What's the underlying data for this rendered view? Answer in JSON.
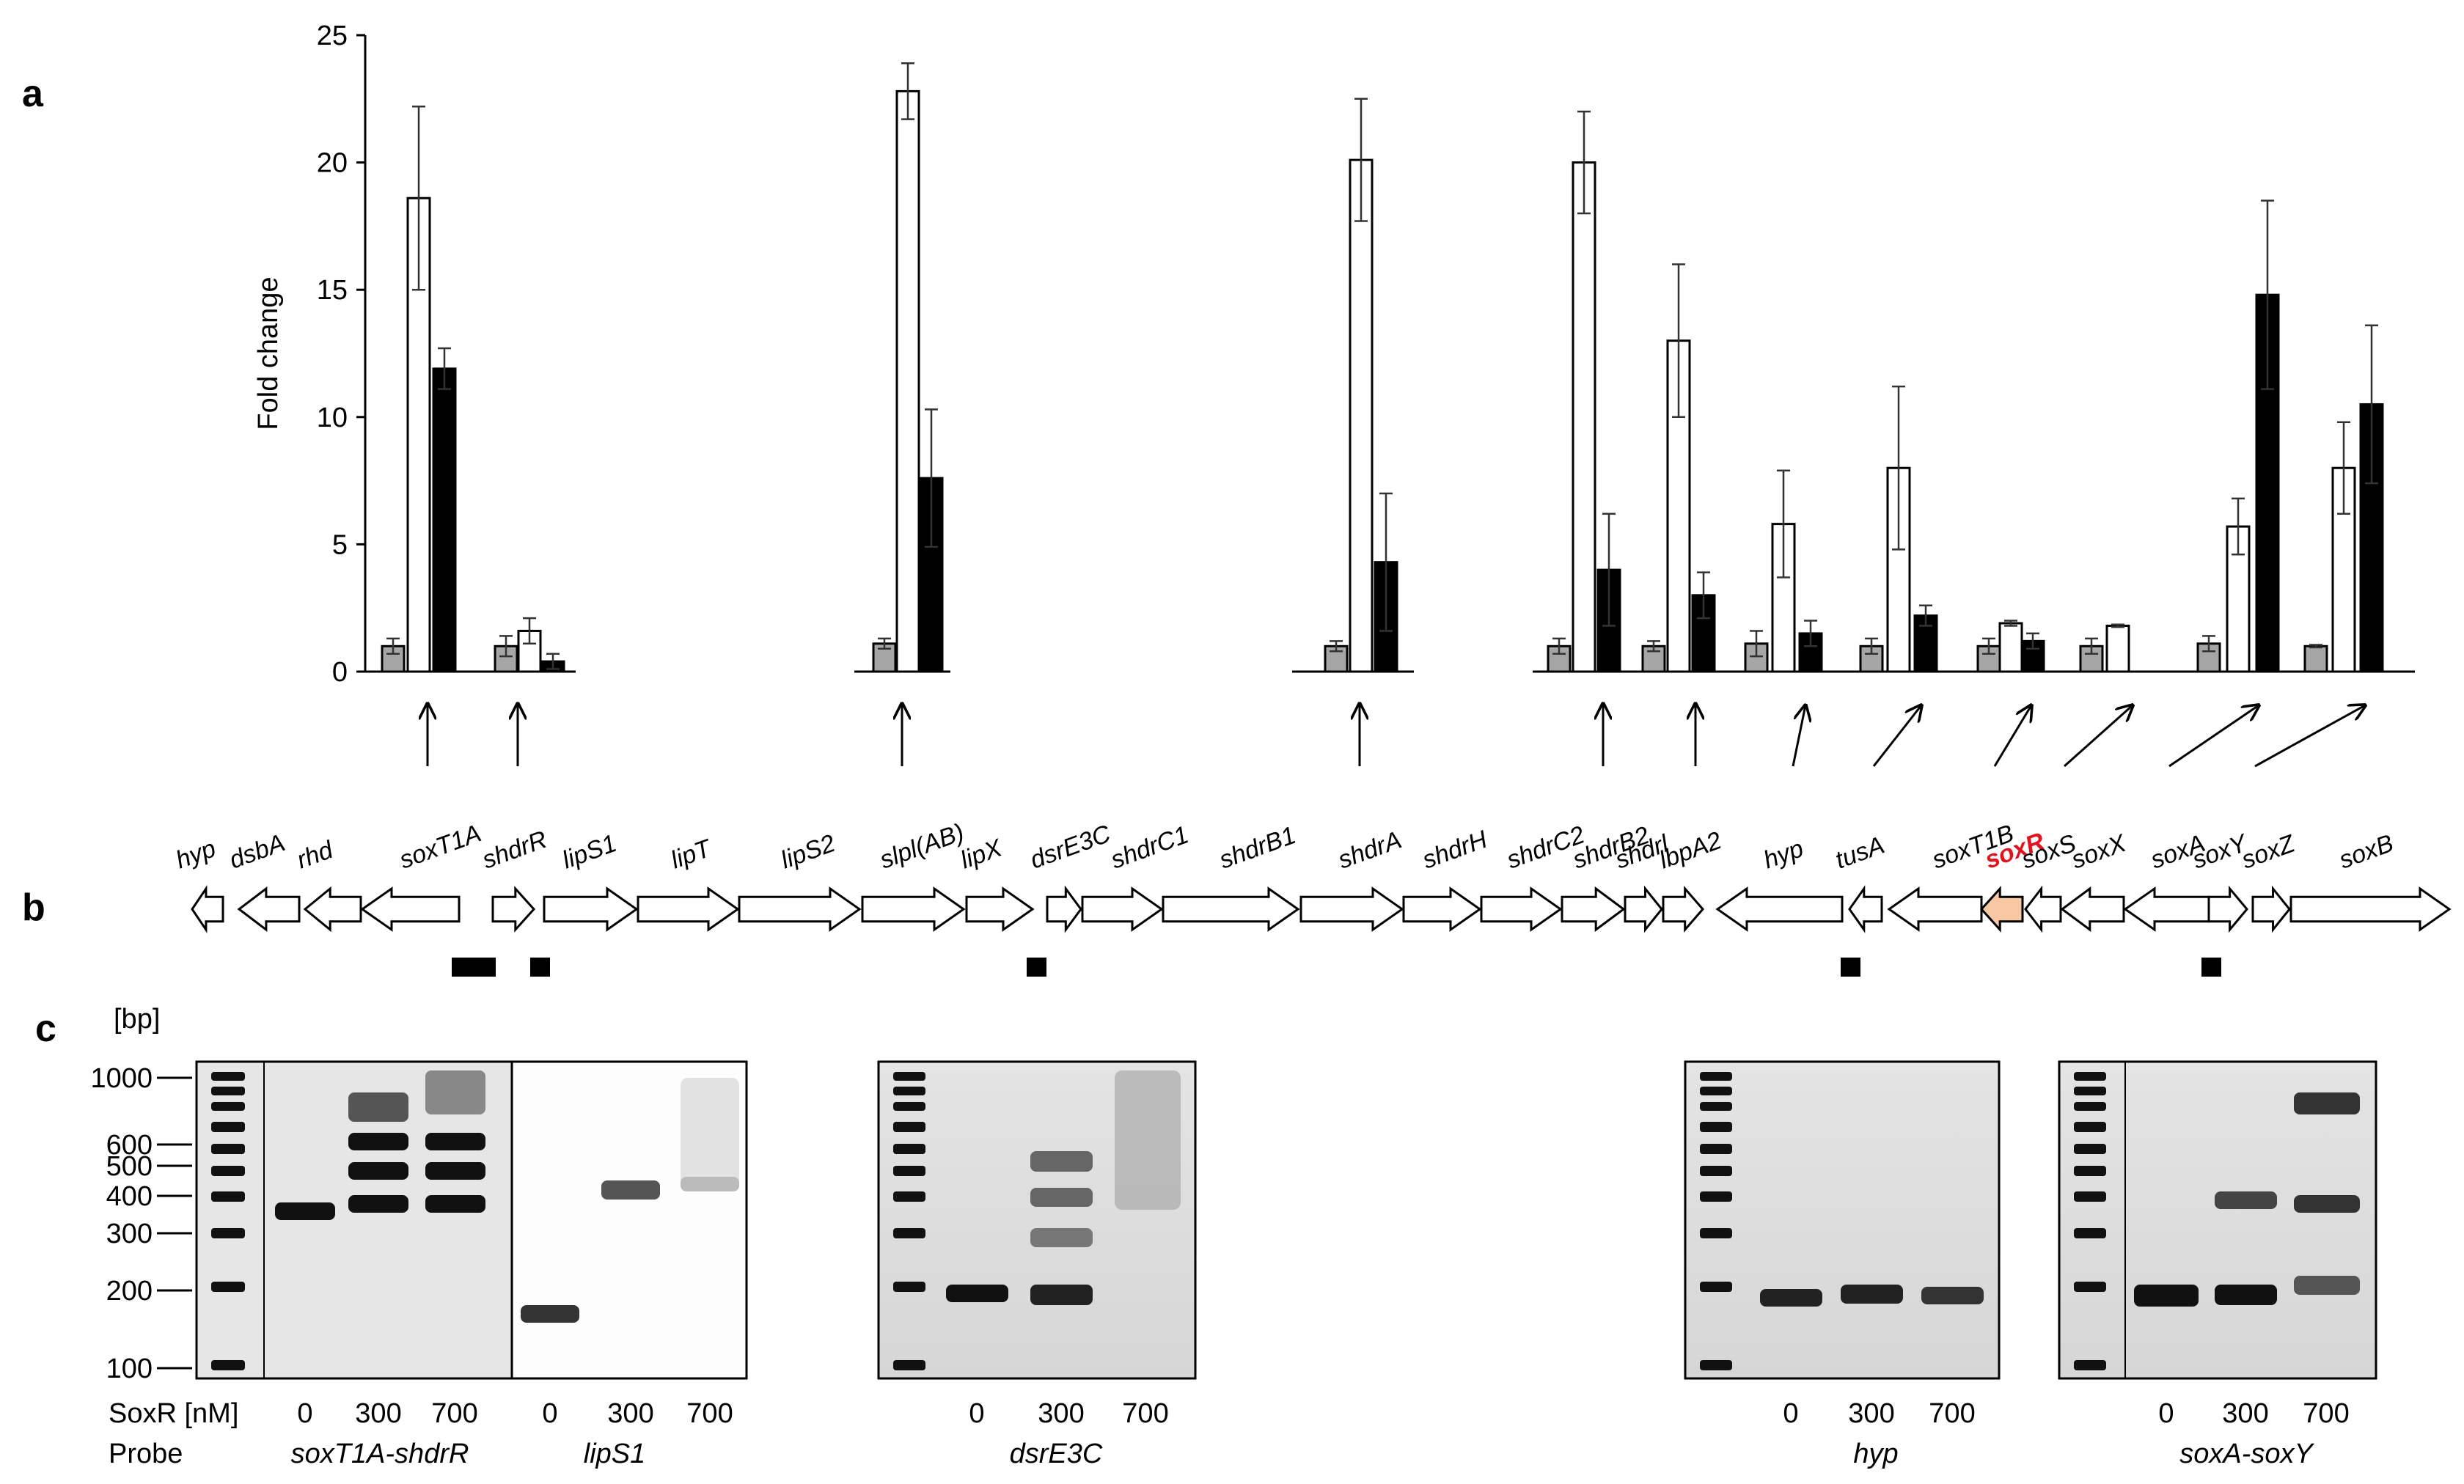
{
  "panels": {
    "a": "a",
    "b": "b",
    "c": "c"
  },
  "chart_data": {
    "type": "bar",
    "ylabel": "Fold change",
    "ylim": [
      0,
      25
    ],
    "yticks": [
      "0",
      "5",
      "10",
      "15",
      "20",
      "25"
    ],
    "groups": [
      {
        "id": "g1",
        "values": [
          1.0,
          18.6,
          11.9
        ],
        "errors": [
          0.3,
          3.6,
          0.8
        ]
      },
      {
        "id": "g2",
        "values": [
          1.0,
          1.6,
          0.4
        ],
        "errors": [
          0.4,
          0.5,
          0.3
        ]
      },
      {
        "id": "g3",
        "values": [
          1.1,
          22.8
        ],
        "errors": [
          0.2,
          1.1
        ]
      },
      {
        "id": "g4",
        "values": [
          7.6
        ],
        "errors": [
          2.7
        ]
      },
      {
        "id": "g5",
        "values": [
          1.0,
          20.1,
          4.3
        ],
        "errors": [
          0.2,
          2.4,
          2.7
        ]
      },
      {
        "id": "g6",
        "values": [
          1.0,
          20.0,
          4.0
        ],
        "errors": [
          0.3,
          2.0,
          2.2
        ]
      },
      {
        "id": "g7",
        "values": [
          1.0,
          13.0,
          3.0
        ],
        "errors": [
          0.2,
          3.0,
          0.9
        ]
      },
      {
        "id": "g8",
        "values": [
          1.1,
          5.8,
          1.5
        ],
        "errors": [
          0.5,
          2.1,
          0.5
        ]
      },
      {
        "id": "g9",
        "values": [
          1.0,
          8.0,
          2.2
        ],
        "errors": [
          0.3,
          3.2,
          0.4
        ]
      },
      {
        "id": "g10",
        "values": [
          1.0,
          1.9,
          1.2
        ],
        "errors": [
          0.3,
          0.1,
          0.3
        ]
      },
      {
        "id": "g11",
        "values": [
          1.0,
          1.8
        ],
        "errors": [
          0.3,
          0.05
        ]
      },
      {
        "id": "g12",
        "values": [
          1.1,
          5.7,
          14.8
        ],
        "errors": [
          0.3,
          1.1,
          3.7
        ]
      },
      {
        "id": "g13",
        "values": [
          1.0,
          8.0,
          10.5
        ],
        "errors": [
          0.05,
          1.8,
          3.1
        ]
      }
    ],
    "bar_colors": [
      "#a6a6a6",
      "#ffffff",
      "#000000"
    ]
  },
  "genes": [
    {
      "label": "hyp"
    },
    {
      "label": "dsbA"
    },
    {
      "label": "rhd"
    },
    {
      "label": "soxT1A"
    },
    {
      "label": "shdrR"
    },
    {
      "label": "lipS1"
    },
    {
      "label": "lipT"
    },
    {
      "label": "lipS2"
    },
    {
      "label": "slpl(AB)"
    },
    {
      "label": "lipX"
    },
    {
      "label": "dsrE3C"
    },
    {
      "label": "shdrC1"
    },
    {
      "label": "shdrB1"
    },
    {
      "label": "shdrA"
    },
    {
      "label": "shdrH"
    },
    {
      "label": "shdrC2"
    },
    {
      "label": "shdrB2"
    },
    {
      "label": "shdrl"
    },
    {
      "label": "lbpA2"
    },
    {
      "label": "hyp"
    },
    {
      "label": "tusA"
    },
    {
      "label": "soxT1B"
    },
    {
      "label": "soxR"
    },
    {
      "label": "soxS"
    },
    {
      "label": "soxX"
    },
    {
      "label": "soxA"
    },
    {
      "label": "soxY"
    },
    {
      "label": "soxZ"
    },
    {
      "label": "soxB"
    }
  ],
  "gel": {
    "bp_unit": "[bp]",
    "ladder": [
      "1000",
      "600",
      "500",
      "400",
      "300",
      "200",
      "100"
    ],
    "soxr_label": "SoxR [nM]",
    "probe_label": "Probe",
    "concentrations": [
      "0",
      "300",
      "700"
    ],
    "probes": [
      "soxT1A-shdrR",
      "lipS1",
      "dsrE3C",
      "hyp",
      "soxA-soxY"
    ]
  }
}
